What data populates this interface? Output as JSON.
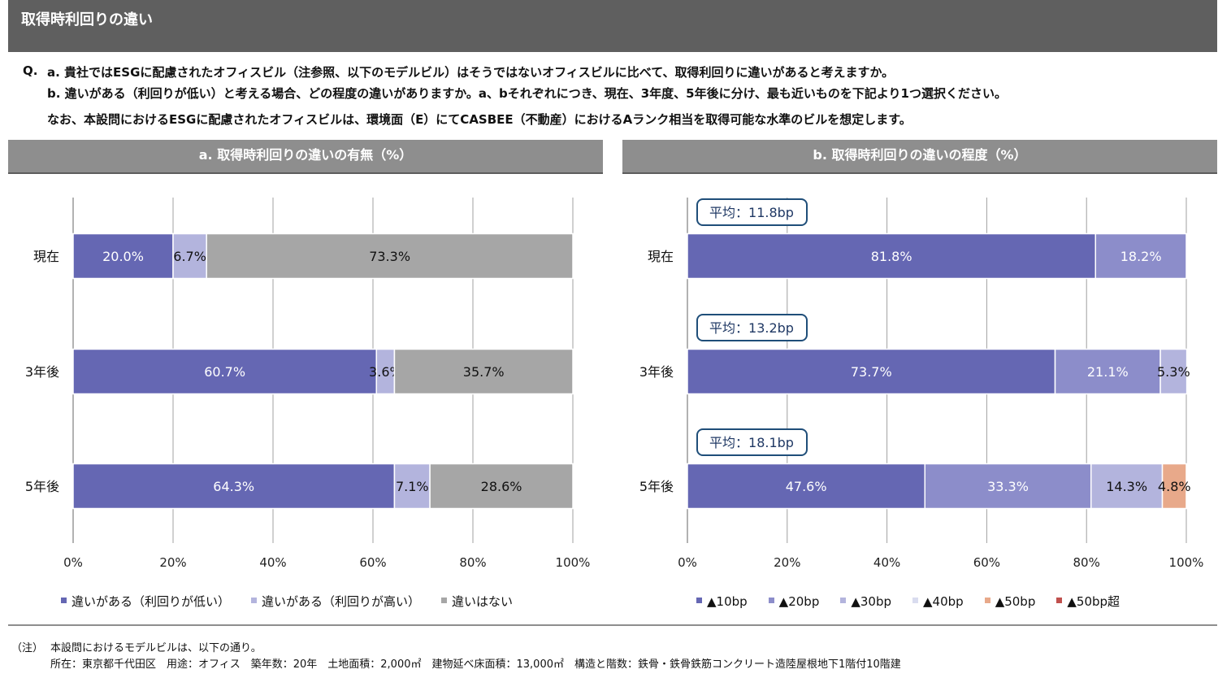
{
  "header": {
    "title": "取得時利回りの違い"
  },
  "question": {
    "prefix": "Q.",
    "line_a": "a. 貴社ではESGに配慮されたオフィスビル（注参照、以下のモデルビル）はそうではないオフィスビルに比べて、取得利回りに違いがあると考えますか。",
    "line_b": "b. 違いがある（利回りが低い）と考える場合、どの程度の違いがありますか。a、bそれぞれにつき、現在、3年度、5年後に分け、最も近いものを下記より1つ選択ください。",
    "line_c": "なお、本設問におけるESGに配慮されたオフィスビルは、環境面（E）にてCASBEE（不動産）におけるAランク相当を取得可能な水準のビルを想定します。"
  },
  "chart_data": [
    {
      "type": "bar",
      "orientation": "horizontal",
      "stacked": true,
      "title": "a. 取得時利回りの違いの有無（%）",
      "categories": [
        "現在",
        "3年後",
        "5年後"
      ],
      "series": [
        {
          "name": "違いがある（利回りが低い）",
          "color": "#6567b3",
          "values": [
            20.0,
            60.7,
            64.3
          ],
          "labels": [
            "20.0%",
            "60.7%",
            "64.3%"
          ]
        },
        {
          "name": "違いがある（利回りが高い）",
          "color": "#b3b4dd",
          "values": [
            6.7,
            3.6,
            7.1
          ],
          "labels": [
            "6.7%",
            "3.6%",
            "7.1%"
          ]
        },
        {
          "name": "違いはない",
          "color": "#a6a6a6",
          "values": [
            73.3,
            35.7,
            28.6
          ],
          "labels": [
            "73.3%",
            "35.7%",
            "28.6%"
          ]
        }
      ],
      "x_ticks": [
        "0%",
        "20%",
        "40%",
        "60%",
        "80%",
        "100%"
      ],
      "xlim": [
        0,
        100
      ],
      "grid": true,
      "legend": "bottom"
    },
    {
      "type": "bar",
      "orientation": "horizontal",
      "stacked": true,
      "title": "b. 取得時利回りの違いの程度（%）",
      "categories": [
        "現在",
        "3年後",
        "5年後"
      ],
      "annotations": [
        "平均：11.8bp",
        "平均：13.2bp",
        "平均：18.1bp"
      ],
      "series": [
        {
          "name": "▲10bp",
          "color": "#6567b3",
          "values": [
            81.8,
            73.7,
            47.6
          ],
          "labels": [
            "81.8%",
            "73.7%",
            "47.6%"
          ]
        },
        {
          "name": "▲20bp",
          "color": "#8c8dca",
          "values": [
            18.2,
            21.1,
            33.3
          ],
          "labels": [
            "18.2%",
            "21.1%",
            "33.3%"
          ]
        },
        {
          "name": "▲30bp",
          "color": "#b3b4dd",
          "values": [
            0,
            5.3,
            14.3
          ],
          "labels": [
            "",
            "5.3%",
            "14.3%"
          ]
        },
        {
          "name": "▲40bp",
          "color": "#d9dcef",
          "values": [
            0,
            0,
            0
          ],
          "labels": [
            "",
            "",
            ""
          ]
        },
        {
          "name": "▲50bp",
          "color": "#e8a98a",
          "values": [
            0,
            0,
            4.8
          ],
          "labels": [
            "",
            "",
            "4.8%"
          ]
        },
        {
          "name": "▲50bp超",
          "color": "#c0504d",
          "values": [
            0,
            0,
            0
          ],
          "labels": [
            "",
            "",
            ""
          ]
        }
      ],
      "x_ticks": [
        "0%",
        "20%",
        "40%",
        "60%",
        "80%",
        "100%"
      ],
      "xlim": [
        0,
        100
      ],
      "grid": true,
      "legend": "bottom"
    }
  ],
  "notes": {
    "label": "（注）",
    "line1": "本設問におけるモデルビルは、以下の通り。",
    "line2": "所在：東京都千代田区　用途：オフィス　築年数：20年　土地面積：2,000㎡　建物延べ床面積：13,000㎡　構造と階数：鉄骨・鉄骨鉄筋コンクリート造陸屋根地下1階付10階建"
  }
}
